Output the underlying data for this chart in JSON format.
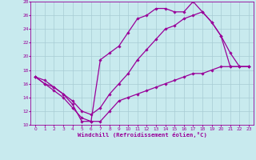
{
  "background_color": "#c8eaee",
  "grid_color": "#a8ccd4",
  "line_color": "#990099",
  "xlabel": "Windchill (Refroidissement éolien,°C)",
  "xlim": [
    0,
    23
  ],
  "ylim": [
    10,
    28
  ],
  "yticks": [
    10,
    12,
    14,
    16,
    18,
    20,
    22,
    24,
    26,
    28
  ],
  "xticks": [
    0,
    1,
    2,
    3,
    4,
    5,
    6,
    7,
    8,
    9,
    10,
    11,
    12,
    13,
    14,
    15,
    16,
    17,
    18,
    19,
    20,
    21,
    22,
    23
  ],
  "curve1_x": [
    0,
    1,
    2,
    3,
    4,
    5,
    6,
    7,
    8,
    9,
    10,
    11,
    12,
    13,
    14,
    15,
    16,
    17,
    18,
    19,
    20,
    21,
    22,
    23
  ],
  "curve1_y": [
    17.0,
    16.0,
    15.5,
    14.5,
    13.0,
    10.5,
    10.5,
    19.5,
    20.5,
    21.5,
    23.5,
    25.5,
    26.0,
    27.0,
    27.0,
    26.5,
    26.5,
    28.0,
    26.5,
    25.0,
    23.0,
    18.5,
    18.5,
    18.5
  ],
  "curve2_x": [
    0,
    1,
    2,
    3,
    4,
    5,
    6,
    7,
    8,
    9,
    10,
    11,
    12,
    13,
    14,
    15,
    16,
    17,
    18,
    19,
    20,
    21,
    22,
    23
  ],
  "curve2_y": [
    17.0,
    16.5,
    15.5,
    14.5,
    13.5,
    12.0,
    11.5,
    12.5,
    14.5,
    16.0,
    17.5,
    19.5,
    21.0,
    22.5,
    24.0,
    24.5,
    25.5,
    26.0,
    26.5,
    25.0,
    23.0,
    20.5,
    18.5,
    18.5
  ],
  "curve3_x": [
    0,
    1,
    2,
    3,
    4,
    5,
    6,
    7,
    8,
    9,
    10,
    11,
    12,
    13,
    14,
    15,
    16,
    17,
    18,
    19,
    20,
    21,
    22,
    23
  ],
  "curve3_y": [
    17.0,
    16.0,
    15.0,
    14.0,
    12.5,
    11.0,
    10.5,
    10.5,
    12.0,
    13.5,
    14.0,
    14.5,
    15.0,
    15.5,
    16.0,
    16.5,
    17.0,
    17.5,
    17.5,
    18.0,
    18.5,
    18.5,
    18.5,
    18.5
  ]
}
